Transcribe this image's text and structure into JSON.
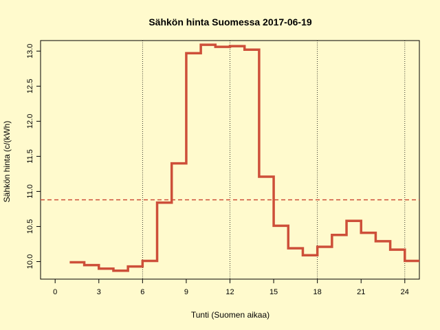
{
  "chart_data": {
    "type": "line",
    "step": true,
    "title": "Sähkön hinta Suomessa 2017-06-19",
    "xlabel": "Tunti (Suomen aikaa)",
    "ylabel": "Sähkön hinta (c/(kWh)",
    "xlim": [
      -1,
      25
    ],
    "ylim": [
      9.75,
      13.15
    ],
    "xticks": [
      0,
      3,
      6,
      9,
      12,
      15,
      18,
      21,
      24
    ],
    "xtick_labels": [
      "0",
      "3",
      "6",
      "9",
      "12",
      "15",
      "18",
      "21",
      "24"
    ],
    "yticks": [
      10.0,
      10.5,
      11.0,
      11.5,
      12.0,
      12.5,
      13.0
    ],
    "ytick_labels": [
      "10.0",
      "10.5",
      "11.0",
      "11.5",
      "12.0",
      "12.5",
      "13.0"
    ],
    "vertical_gridlines_x": [
      6,
      12,
      18,
      24
    ],
    "mean_line": {
      "value": 10.88,
      "style": "dashed",
      "color": "#cd4f39"
    },
    "line_color": "#cd4f39",
    "series": [
      {
        "x": [
          1,
          2,
          3,
          4,
          5,
          6,
          7,
          8,
          9,
          10,
          11,
          12,
          13,
          14,
          15,
          16,
          17,
          18,
          19,
          20,
          21,
          22,
          23,
          24
        ],
        "values": [
          9.99,
          9.95,
          9.9,
          9.87,
          9.93,
          10.01,
          10.84,
          11.4,
          12.97,
          13.09,
          13.06,
          13.07,
          13.02,
          11.21,
          10.51,
          10.19,
          10.09,
          10.21,
          10.38,
          10.58,
          10.41,
          10.29,
          10.17,
          10.01
        ]
      }
    ]
  }
}
